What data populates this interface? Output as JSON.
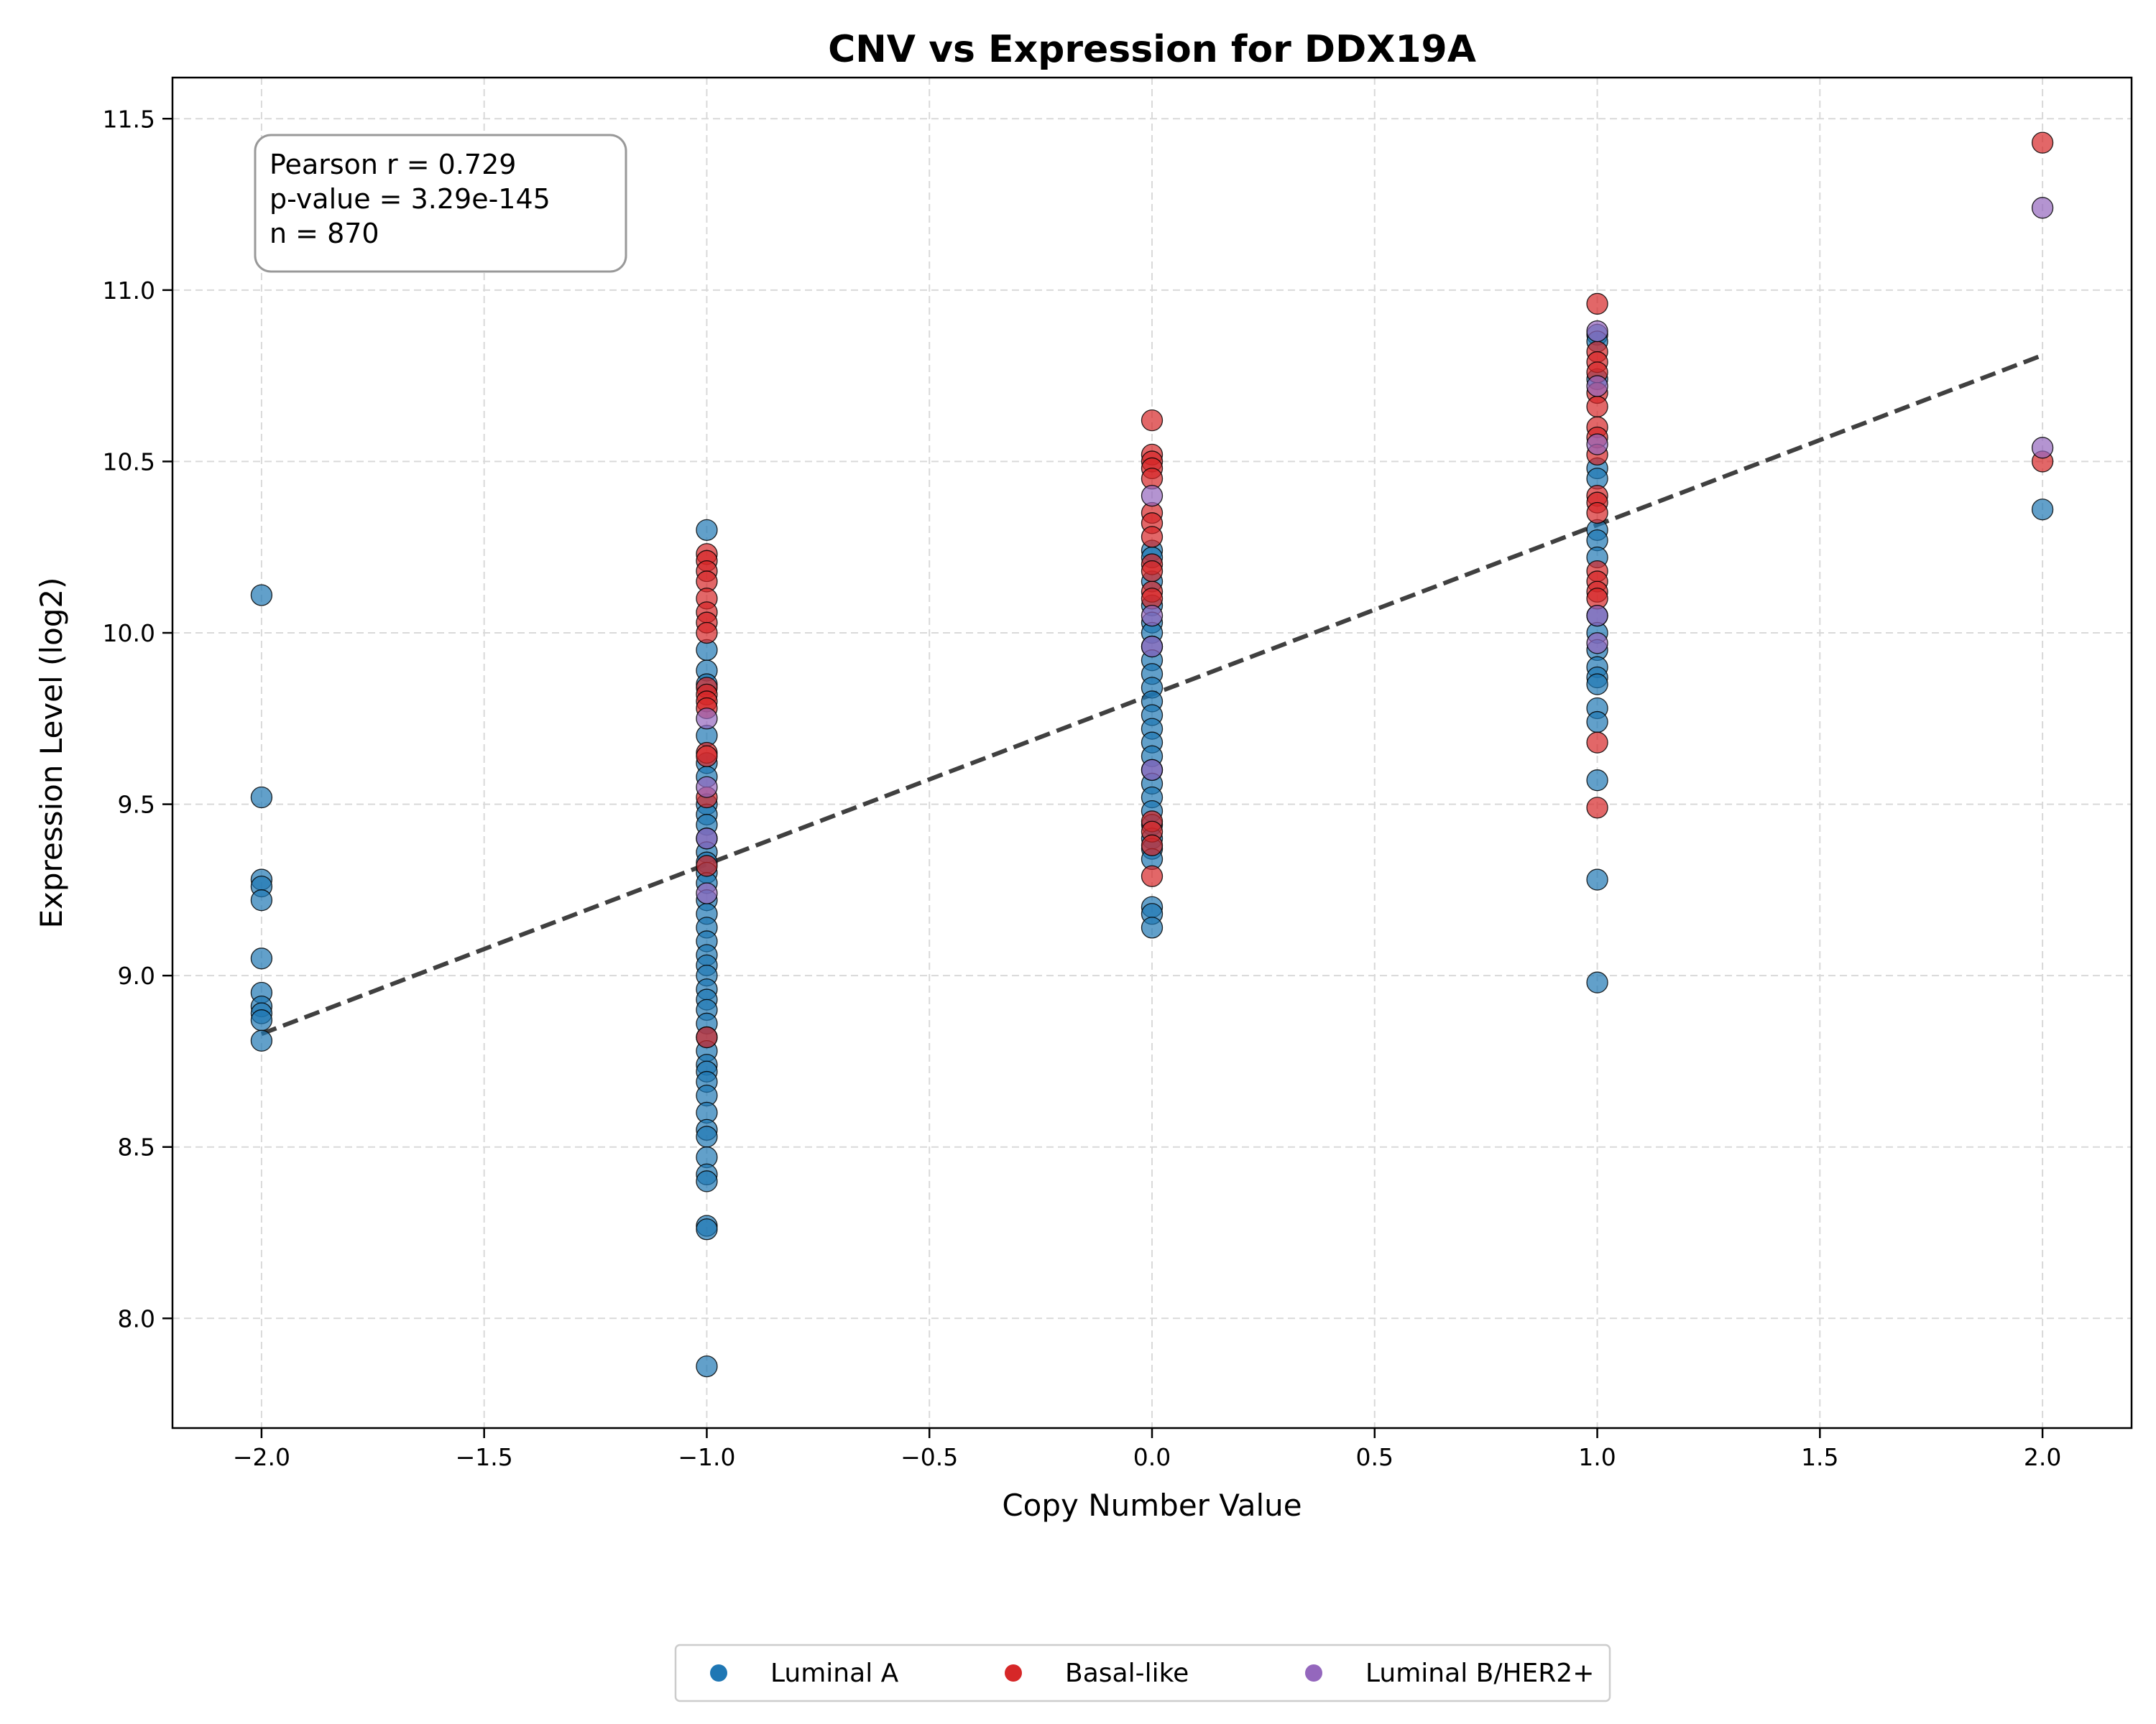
{
  "chart_data": {
    "type": "scatter",
    "title": "CNV vs Expression for DDX19A",
    "xlabel": "Copy Number Value",
    "ylabel": "Expression Level (log2)",
    "xlim": [
      -2.2,
      2.2
    ],
    "ylim": [
      7.68,
      11.62
    ],
    "xticks": [
      -2.0,
      -1.5,
      -1.0,
      -0.5,
      0.0,
      0.5,
      1.0,
      1.5,
      2.0
    ],
    "xtick_labels": [
      "−2.0",
      "−1.5",
      "−1.0",
      "−0.5",
      "0.0",
      "0.5",
      "1.0",
      "1.5",
      "2.0"
    ],
    "yticks": [
      8.0,
      8.5,
      9.0,
      9.5,
      10.0,
      10.5,
      11.0,
      11.5
    ],
    "ytick_labels": [
      "8.0",
      "8.5",
      "9.0",
      "9.5",
      "10.0",
      "10.5",
      "11.0",
      "11.5"
    ],
    "grid": true,
    "legend_position": "bottom-center-outside",
    "stats": {
      "pearson": "Pearson r = 0.729",
      "pvalue": "p-value = 3.29e-145",
      "n": "n = 870"
    },
    "trend_line": {
      "x": [
        -2.0,
        2.0
      ],
      "y": [
        8.83,
        10.81
      ],
      "style": "dashed",
      "color": "#404040"
    },
    "series": [
      {
        "name": "Luminal A",
        "color": "#1f77b4",
        "points": [
          [
            -2,
            10.11
          ],
          [
            -2,
            9.52
          ],
          [
            -2,
            9.28
          ],
          [
            -2,
            9.26
          ],
          [
            -2,
            9.22
          ],
          [
            -2,
            9.05
          ],
          [
            -2,
            8.95
          ],
          [
            -2,
            8.91
          ],
          [
            -2,
            8.89
          ],
          [
            -2,
            8.87
          ],
          [
            -2,
            8.81
          ],
          [
            -1,
            10.3
          ],
          [
            -1,
            9.95
          ],
          [
            -1,
            9.89
          ],
          [
            -1,
            9.85
          ],
          [
            -1,
            9.7
          ],
          [
            -1,
            9.62
          ],
          [
            -1,
            9.58
          ],
          [
            -1,
            9.5
          ],
          [
            -1,
            9.47
          ],
          [
            -1,
            9.44
          ],
          [
            -1,
            9.4
          ],
          [
            -1,
            9.36
          ],
          [
            -1,
            9.33
          ],
          [
            -1,
            9.3
          ],
          [
            -1,
            9.27
          ],
          [
            -1,
            9.22
          ],
          [
            -1,
            9.18
          ],
          [
            -1,
            9.14
          ],
          [
            -1,
            9.1
          ],
          [
            -1,
            9.06
          ],
          [
            -1,
            9.03
          ],
          [
            -1,
            9.0
          ],
          [
            -1,
            8.96
          ],
          [
            -1,
            8.93
          ],
          [
            -1,
            8.9
          ],
          [
            -1,
            8.86
          ],
          [
            -1,
            8.82
          ],
          [
            -1,
            8.78
          ],
          [
            -1,
            8.74
          ],
          [
            -1,
            8.72
          ],
          [
            -1,
            8.69
          ],
          [
            -1,
            8.65
          ],
          [
            -1,
            8.6
          ],
          [
            -1,
            8.55
          ],
          [
            -1,
            8.53
          ],
          [
            -1,
            8.47
          ],
          [
            -1,
            8.42
          ],
          [
            -1,
            8.4
          ],
          [
            -1,
            8.27
          ],
          [
            -1,
            8.26
          ],
          [
            -1,
            7.86
          ],
          [
            0,
            10.24
          ],
          [
            0,
            10.22
          ],
          [
            0,
            10.15
          ],
          [
            0,
            10.08
          ],
          [
            0,
            10.03
          ],
          [
            0,
            10.0
          ],
          [
            0,
            9.96
          ],
          [
            0,
            9.92
          ],
          [
            0,
            9.88
          ],
          [
            0,
            9.84
          ],
          [
            0,
            9.8
          ],
          [
            0,
            9.76
          ],
          [
            0,
            9.72
          ],
          [
            0,
            9.68
          ],
          [
            0,
            9.64
          ],
          [
            0,
            9.6
          ],
          [
            0,
            9.56
          ],
          [
            0,
            9.52
          ],
          [
            0,
            9.48
          ],
          [
            0,
            9.44
          ],
          [
            0,
            9.4
          ],
          [
            0,
            9.37
          ],
          [
            0,
            9.34
          ],
          [
            0,
            9.2
          ],
          [
            0,
            9.18
          ],
          [
            0,
            9.14
          ],
          [
            1,
            10.87
          ],
          [
            1,
            10.85
          ],
          [
            1,
            10.74
          ],
          [
            1,
            10.48
          ],
          [
            1,
            10.45
          ],
          [
            1,
            10.3
          ],
          [
            1,
            10.27
          ],
          [
            1,
            10.22
          ],
          [
            1,
            10.05
          ],
          [
            1,
            10.0
          ],
          [
            1,
            9.95
          ],
          [
            1,
            9.9
          ],
          [
            1,
            9.87
          ],
          [
            1,
            9.85
          ],
          [
            1,
            9.78
          ],
          [
            1,
            9.74
          ],
          [
            1,
            9.57
          ],
          [
            1,
            9.28
          ],
          [
            1,
            8.98
          ],
          [
            2,
            10.36
          ]
        ]
      },
      {
        "name": "Basal-like",
        "color": "#d62728",
        "points": [
          [
            -1,
            10.23
          ],
          [
            -1,
            10.21
          ],
          [
            -1,
            10.18
          ],
          [
            -1,
            10.15
          ],
          [
            -1,
            10.1
          ],
          [
            -1,
            10.06
          ],
          [
            -1,
            10.03
          ],
          [
            -1,
            10.0
          ],
          [
            -1,
            9.84
          ],
          [
            -1,
            9.82
          ],
          [
            -1,
            9.8
          ],
          [
            -1,
            9.78
          ],
          [
            -1,
            9.65
          ],
          [
            -1,
            9.64
          ],
          [
            -1,
            9.52
          ],
          [
            -1,
            9.32
          ],
          [
            -1,
            8.82
          ],
          [
            0,
            10.62
          ],
          [
            0,
            10.52
          ],
          [
            0,
            10.5
          ],
          [
            0,
            10.48
          ],
          [
            0,
            10.45
          ],
          [
            0,
            10.35
          ],
          [
            0,
            10.32
          ],
          [
            0,
            10.28
          ],
          [
            0,
            10.2
          ],
          [
            0,
            10.18
          ],
          [
            0,
            10.12
          ],
          [
            0,
            10.1
          ],
          [
            0,
            9.45
          ],
          [
            0,
            9.42
          ],
          [
            0,
            9.38
          ],
          [
            0,
            9.29
          ],
          [
            1,
            10.96
          ],
          [
            1,
            10.82
          ],
          [
            1,
            10.79
          ],
          [
            1,
            10.76
          ],
          [
            1,
            10.7
          ],
          [
            1,
            10.66
          ],
          [
            1,
            10.6
          ],
          [
            1,
            10.57
          ],
          [
            1,
            10.52
          ],
          [
            1,
            10.4
          ],
          [
            1,
            10.38
          ],
          [
            1,
            10.35
          ],
          [
            1,
            10.18
          ],
          [
            1,
            10.15
          ],
          [
            1,
            10.12
          ],
          [
            1,
            10.1
          ],
          [
            1,
            9.68
          ],
          [
            1,
            9.49
          ],
          [
            2,
            11.43
          ],
          [
            2,
            10.5
          ]
        ]
      },
      {
        "name": "Luminal B/HER2+",
        "color": "#9467bd",
        "points": [
          [
            -1,
            9.75
          ],
          [
            -1,
            9.55
          ],
          [
            -1,
            9.4
          ],
          [
            -1,
            9.24
          ],
          [
            0,
            10.4
          ],
          [
            0,
            10.05
          ],
          [
            0,
            9.96
          ],
          [
            0,
            9.6
          ],
          [
            1,
            10.88
          ],
          [
            1,
            10.72
          ],
          [
            1,
            10.55
          ],
          [
            1,
            10.05
          ],
          [
            1,
            9.97
          ],
          [
            2,
            11.24
          ],
          [
            2,
            10.54
          ]
        ]
      }
    ]
  }
}
